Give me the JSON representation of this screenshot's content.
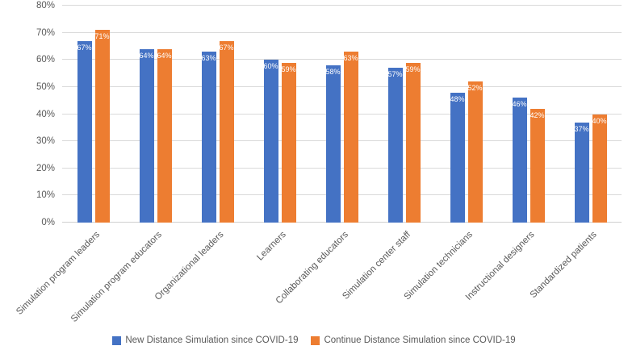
{
  "chart_data": {
    "type": "bar",
    "title": "",
    "categories": [
      "Simulation program leaders",
      "Simulation program educators",
      "Organizational leaders",
      "Learners",
      "Collaborating educators",
      "Simulation center staff",
      "Simulation technicians",
      "Instructional designers",
      "Standardized patients"
    ],
    "series": [
      {
        "name": "New Distance Simulation since COVID-19",
        "color": "#4472C4",
        "values": [
          67,
          64,
          63,
          60,
          58,
          57,
          48,
          46,
          37
        ]
      },
      {
        "name": "Continue Distance Simulation since COVID-19",
        "color": "#ED7D31",
        "values": [
          71,
          64,
          67,
          59,
          63,
          59,
          52,
          42,
          40
        ]
      }
    ],
    "data_labels": [
      "67%",
      "64%",
      "63%",
      "60%",
      "58%",
      "57%",
      "48%",
      "46%",
      "37%",
      "71%",
      "64%",
      "67%",
      "59%",
      "63%",
      "59%",
      "52%",
      "42%",
      "40%"
    ],
    "y_axis": {
      "min": 0,
      "max": 80,
      "step": 10,
      "tick_labels": [
        "0%",
        "10%",
        "20%",
        "30%",
        "40%",
        "50%",
        "60%",
        "70%",
        "80%"
      ]
    },
    "grid": true,
    "legend_position": "bottom",
    "colors": {
      "axis_text": "#595959",
      "gridline": "#d9d9d9",
      "data_label_text": "#ffffff",
      "background": "#ffffff"
    }
  }
}
